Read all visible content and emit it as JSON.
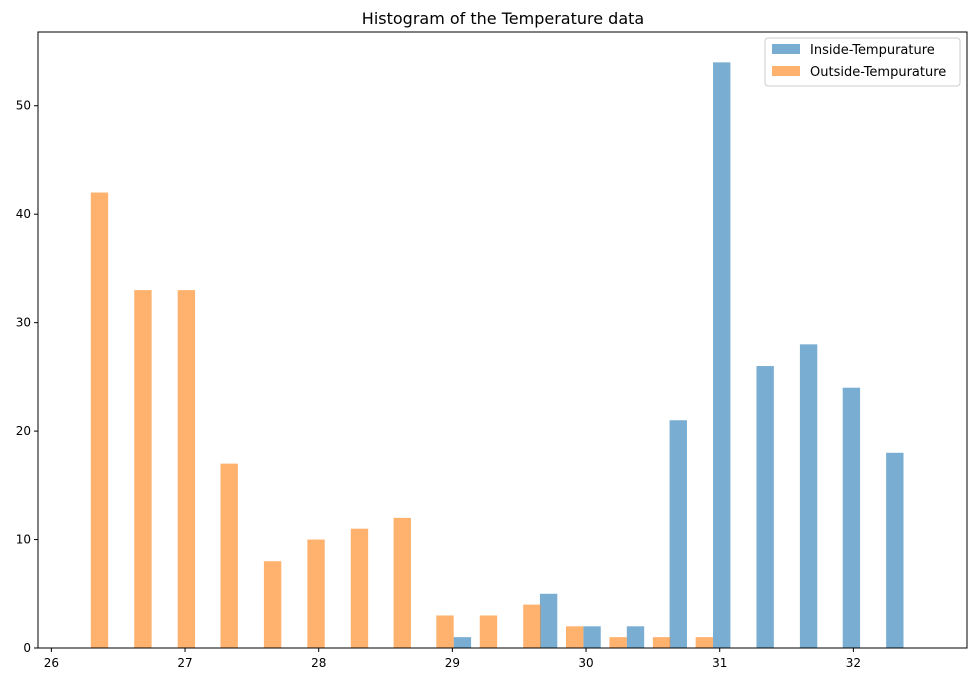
{
  "chart_data": {
    "type": "bar",
    "title": "Histogram of the Temperature data",
    "xlabel": "",
    "ylabel": "",
    "xlim": [
      25.9,
      32.85
    ],
    "ylim": [
      0,
      56.8
    ],
    "xticks": [
      26,
      27,
      28,
      29,
      30,
      31,
      32
    ],
    "yticks": [
      0,
      10,
      20,
      30,
      40,
      50
    ],
    "grid": false,
    "legend_position": "top-right",
    "series": [
      {
        "name": "Inside-Tempurature",
        "color": "#1f77b4",
        "opacity": 0.6,
        "bar_width": 0.13,
        "x": [
          29.075,
          29.72,
          30.045,
          30.37,
          30.69,
          31.015,
          31.34,
          31.665,
          31.985,
          32.31
        ],
        "values": [
          1,
          5,
          2,
          2,
          21,
          54,
          26,
          28,
          24,
          18
        ]
      },
      {
        "name": "Outside-Tempurature",
        "color": "#ff7f0e",
        "opacity": 0.6,
        "bar_width": 0.13,
        "x": [
          26.36,
          26.685,
          27.01,
          27.33,
          27.655,
          27.98,
          28.305,
          28.625,
          28.945,
          29.27,
          29.595,
          29.915,
          30.24,
          30.565,
          30.885
        ],
        "values": [
          42,
          33,
          33,
          17,
          8,
          10,
          11,
          12,
          3,
          3,
          4,
          2,
          1,
          1,
          1
        ]
      }
    ]
  }
}
